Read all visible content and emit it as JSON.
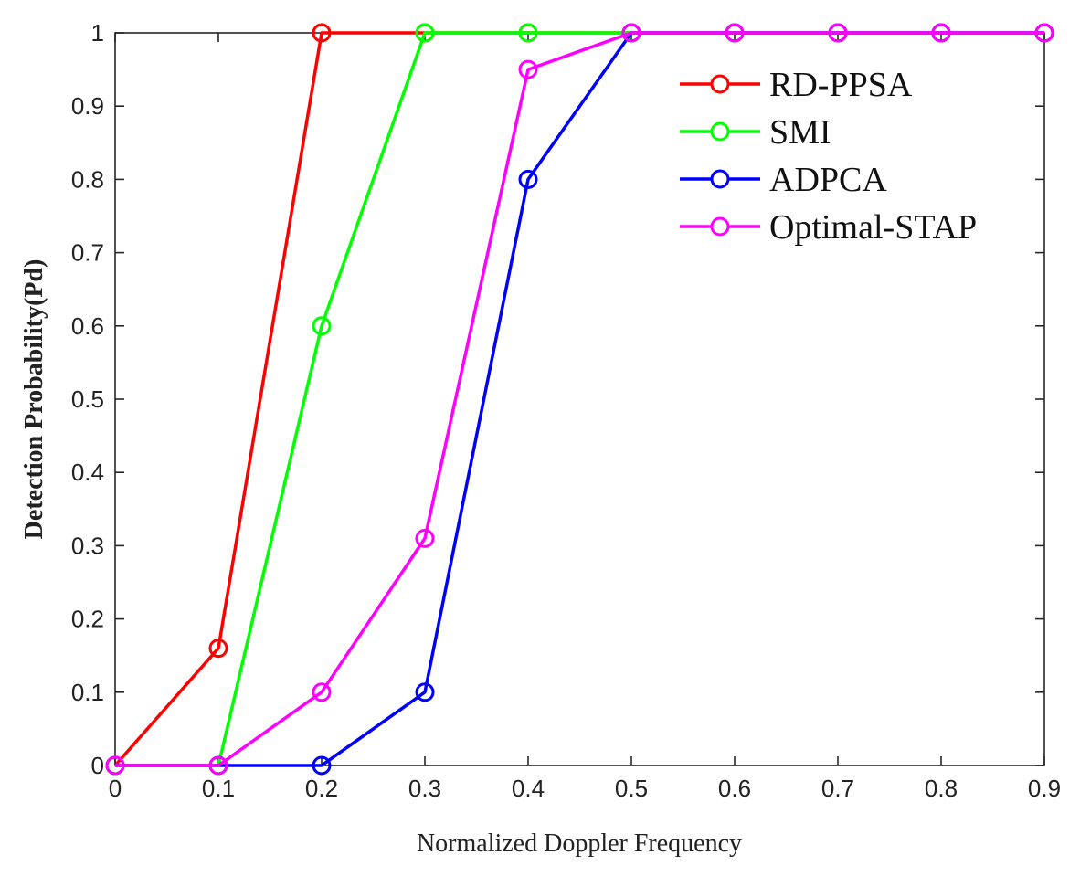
{
  "chart_data": {
    "type": "line",
    "title": "",
    "xlabel": "Normalized Doppler Frequency",
    "ylabel": "Detection Probability(Pd)",
    "xlim": [
      0,
      0.9
    ],
    "ylim": [
      0,
      1
    ],
    "xticks": [
      0,
      0.1,
      0.2,
      0.3,
      0.4,
      0.5,
      0.6,
      0.7,
      0.8,
      0.9
    ],
    "xtick_labels": [
      "0",
      "0.1",
      "0.2",
      "0.3",
      "0.4",
      "0.5",
      "0.6",
      "0.7",
      "0.8",
      "0.9"
    ],
    "yticks": [
      0,
      0.1,
      0.2,
      0.3,
      0.4,
      0.5,
      0.6,
      0.7,
      0.8,
      0.9,
      1
    ],
    "ytick_labels": [
      "0",
      "0.1",
      "0.2",
      "0.3",
      "0.4",
      "0.5",
      "0.6",
      "0.7",
      "0.8",
      "0.9",
      "1"
    ],
    "grid": false,
    "legend_position": "top-right",
    "marker": "circle",
    "series": [
      {
        "name": "RD-PPSA",
        "color": "#ff0000",
        "x": [
          0,
          0.1,
          0.2,
          0.3,
          0.4,
          0.5,
          0.6,
          0.7,
          0.8,
          0.9
        ],
        "y": [
          0,
          0.16,
          1,
          1,
          1,
          1,
          1,
          1,
          1,
          1
        ]
      },
      {
        "name": "SMI",
        "color": "#00ff00",
        "x": [
          0,
          0.1,
          0.2,
          0.3,
          0.4,
          0.5,
          0.6,
          0.7,
          0.8,
          0.9
        ],
        "y": [
          0,
          0,
          0.6,
          1,
          1,
          1,
          1,
          1,
          1,
          1
        ]
      },
      {
        "name": "ADPCA",
        "color": "#0000ff",
        "x": [
          0,
          0.1,
          0.2,
          0.3,
          0.4,
          0.5,
          0.6,
          0.7,
          0.8,
          0.9
        ],
        "y": [
          0,
          0,
          0,
          0.1,
          0.8,
          1,
          1,
          1,
          1,
          1
        ]
      },
      {
        "name": "Optimal-STAP",
        "color": "#ff00ff",
        "x": [
          0,
          0.1,
          0.2,
          0.3,
          0.4,
          0.5,
          0.6,
          0.7,
          0.8,
          0.9
        ],
        "y": [
          0,
          0,
          0.1,
          0.31,
          0.95,
          1,
          1,
          1,
          1,
          1
        ]
      }
    ]
  }
}
